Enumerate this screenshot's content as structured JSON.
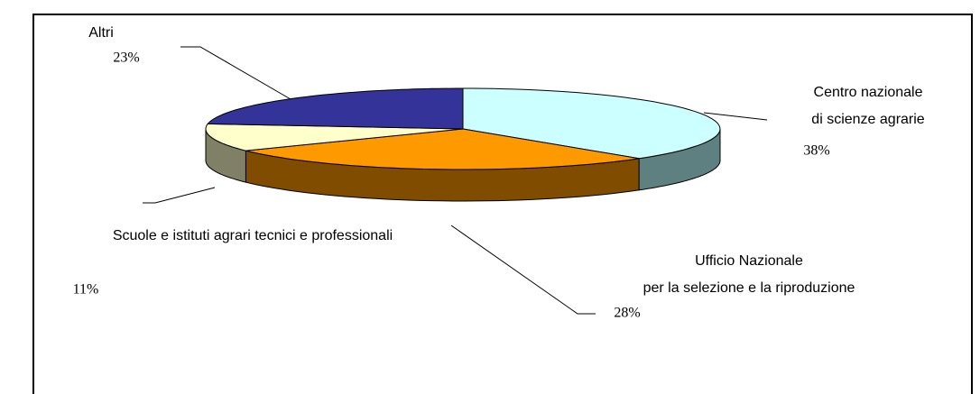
{
  "chart_data": {
    "type": "pie3d",
    "categories": [
      "Centro nazionale\ndi scienze agrarie",
      "Ufficio Nazionale\nper la selezione e la riproduzione",
      "Scuole e istituti agrari tecnici e professionali",
      "Altri"
    ],
    "values": [
      38,
      28,
      11,
      23
    ],
    "value_labels": [
      "38%",
      "28%",
      "11%",
      "23%"
    ],
    "colors": [
      "#ccffff",
      "#ff9900",
      "#ffffcc",
      "#333399"
    ],
    "side_colors": [
      "#5f8080",
      "#804c00",
      "#808066",
      "#1a1a4d"
    ]
  }
}
